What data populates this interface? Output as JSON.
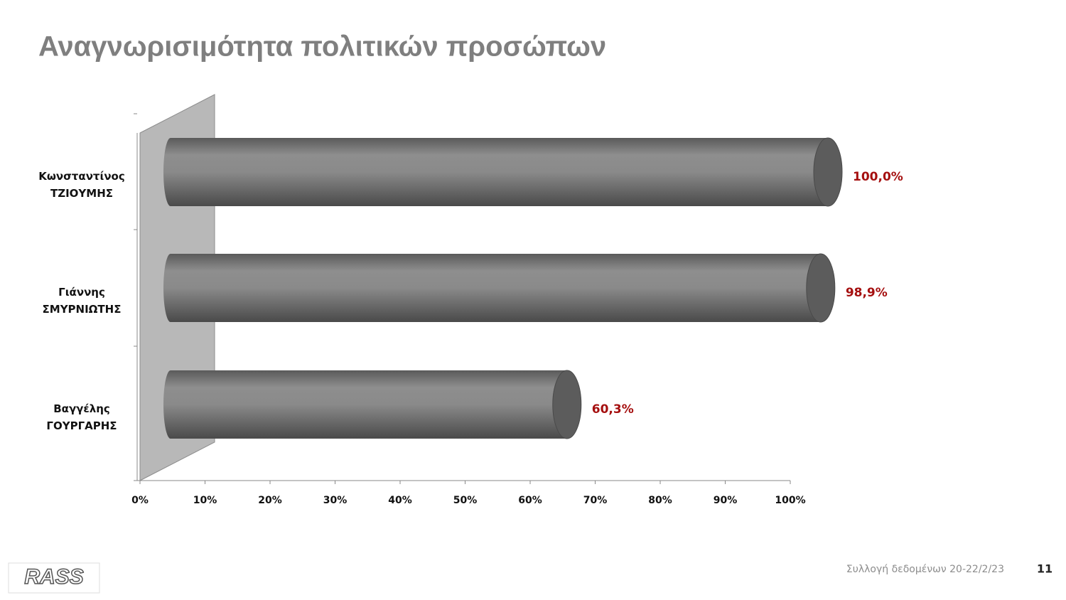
{
  "chart_data": {
    "type": "bar",
    "orientation": "horizontal",
    "title": "Αναγνωρισιμότητα πολιτικών προσώπων",
    "categories": [
      "Κωνσταντίνος ΤΖΙΟΥΜΗΣ",
      "Γιάννης ΣΜΥΡΝΙΩΤΗΣ",
      "Βαγγέλης ΓΟΥΡΓΑΡΗΣ"
    ],
    "values": [
      100,
      98.9,
      60.3
    ],
    "value_labels": [
      "100,0%",
      "98,9%",
      "60,3%"
    ],
    "color": "#8a8a8a",
    "xlim": [
      0,
      100
    ],
    "xticks": [
      {
        "value": 0,
        "label": "0%"
      },
      {
        "value": 10,
        "label": "10%"
      },
      {
        "value": 20,
        "label": "20%"
      },
      {
        "value": 30,
        "label": "30%"
      },
      {
        "value": 40,
        "label": "40%"
      },
      {
        "value": 50,
        "label": "50%"
      },
      {
        "value": 60,
        "label": "60%"
      },
      {
        "value": 70,
        "label": "70%"
      },
      {
        "value": 80,
        "label": "80%"
      },
      {
        "value": 90,
        "label": "90%"
      },
      {
        "value": 100,
        "label": "100%"
      }
    ]
  },
  "footer": {
    "note": "Συλλογή δεδομένων 20-22/2/23",
    "page": "11",
    "logo": "RASS"
  }
}
